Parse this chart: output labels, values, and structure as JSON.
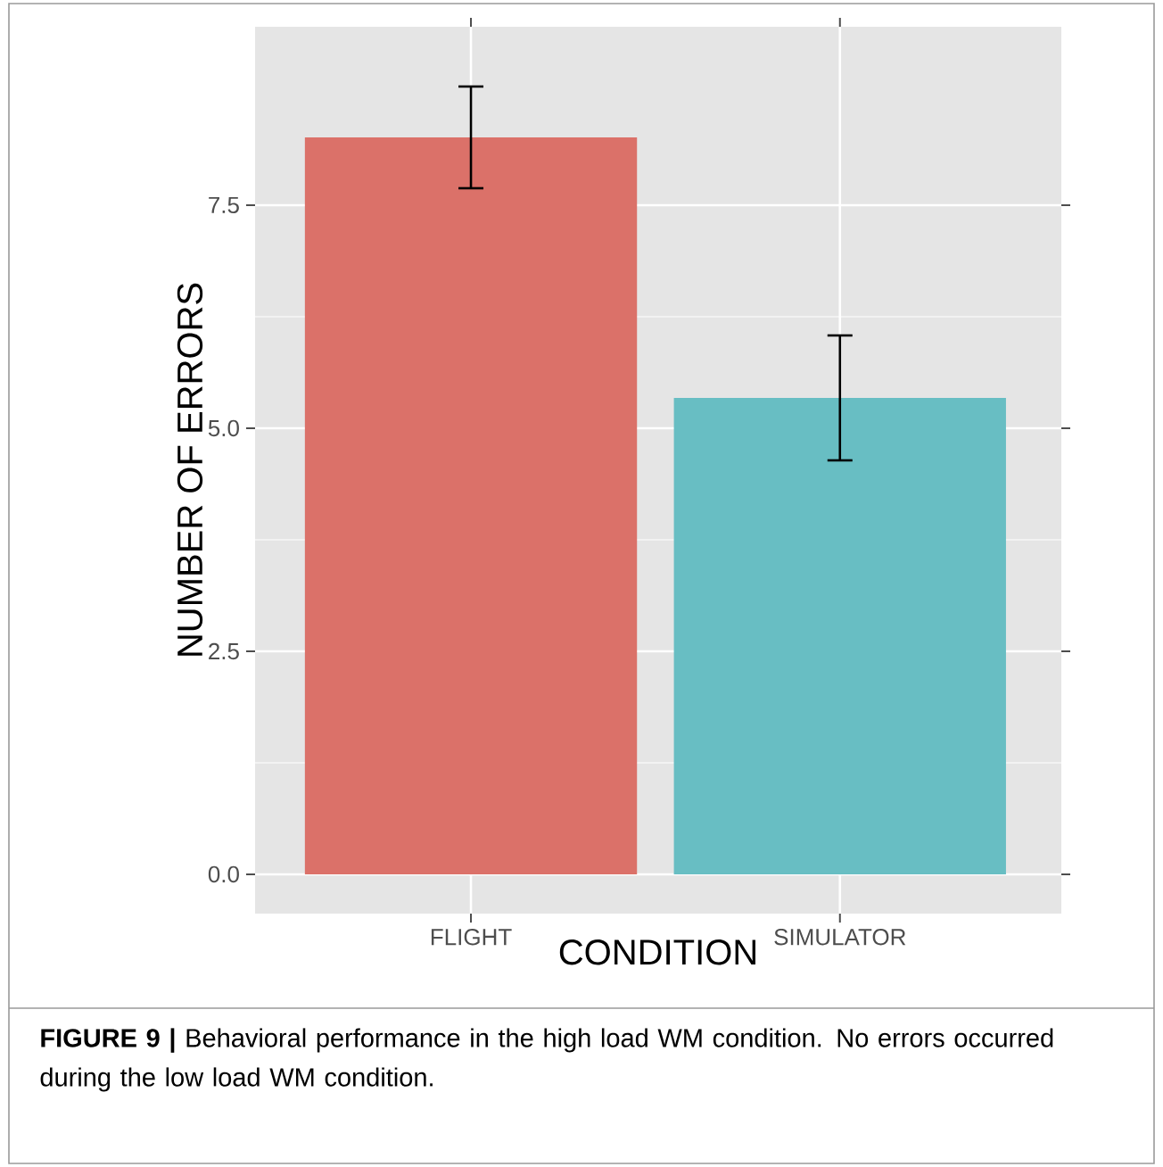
{
  "chart_data": {
    "type": "bar",
    "xlabel": "CONDITION",
    "ylabel": "NUMBER OF ERRORS",
    "categories": [
      "FLIGHT",
      "SIMULATOR"
    ],
    "values": [
      8.26,
      5.34
    ],
    "errors": [
      0.57,
      0.7
    ],
    "colors": [
      "#db7169",
      "#68bec3"
    ],
    "ylim": [
      -0.44,
      9.5
    ],
    "yticks": [
      {
        "value": 0,
        "label": "0.0"
      },
      {
        "value": 2.5,
        "label": "2.5"
      },
      {
        "value": 5,
        "label": "5.0"
      },
      {
        "value": 7.5,
        "label": "7.5"
      }
    ],
    "grid": true,
    "annotations": [
      "**FIGURE 9 |** Behavioral performance in the high load WM condition. No errors occurred during the low load WM condition."
    ]
  }
}
